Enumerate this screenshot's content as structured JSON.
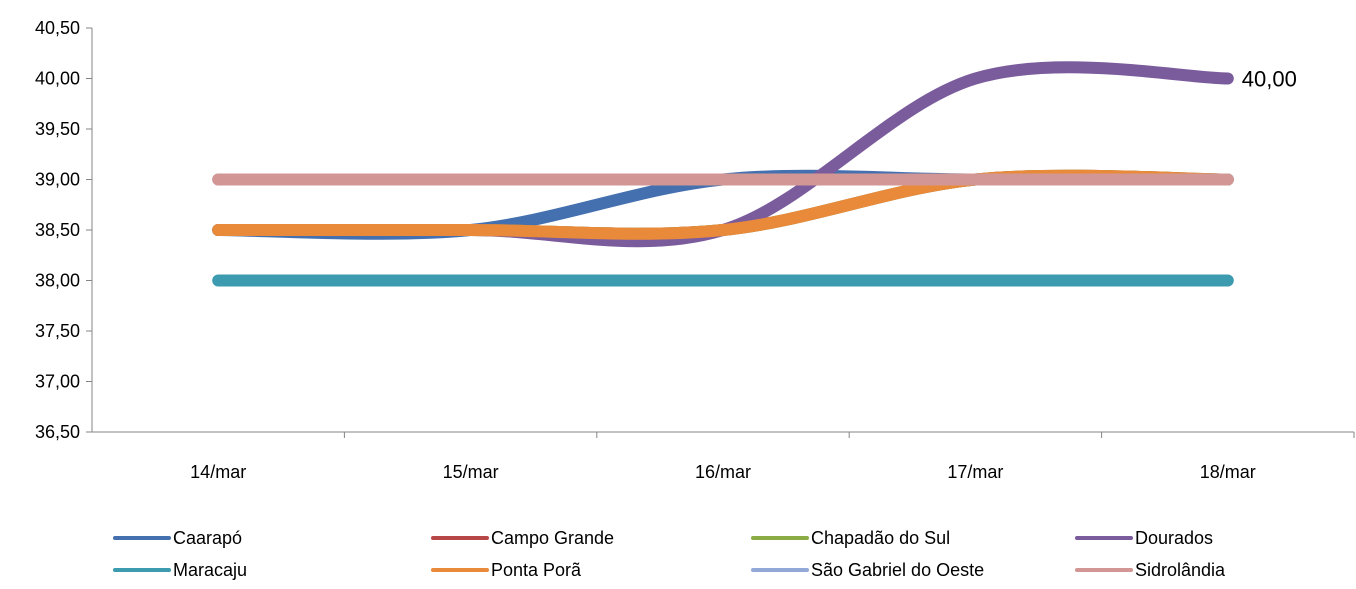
{
  "chart_data": {
    "type": "line",
    "categories": [
      "14/mar",
      "15/mar",
      "16/mar",
      "17/mar",
      "18/mar"
    ],
    "ylim": [
      36.5,
      40.5
    ],
    "yticks": [
      "36,50",
      "37,00",
      "37,50",
      "38,00",
      "38,50",
      "39,00",
      "39,50",
      "40,00",
      "40,50"
    ],
    "grid": false,
    "legend_position": "bottom",
    "smooth": true,
    "series": [
      {
        "name": "Caarapó",
        "color": "#4470b0",
        "values": [
          38.5,
          38.5,
          39.0,
          39.0,
          39.0
        ]
      },
      {
        "name": "Campo Grande",
        "color": "#b64746",
        "values": [
          38.5,
          38.5,
          38.5,
          39.0,
          39.0
        ]
      },
      {
        "name": "Chapadão do Sul",
        "color": "#8bab44",
        "values": [
          38.5,
          38.5,
          38.5,
          39.0,
          39.0
        ]
      },
      {
        "name": "Dourados",
        "color": "#7a5c9c",
        "values": [
          38.5,
          38.5,
          38.5,
          40.0,
          40.0
        ]
      },
      {
        "name": "Maracaju",
        "color": "#3d9bb0",
        "values": [
          38.0,
          38.0,
          38.0,
          38.0,
          38.0
        ]
      },
      {
        "name": "Ponta Porã",
        "color": "#e98a3a",
        "values": [
          38.5,
          38.5,
          38.5,
          39.0,
          39.0
        ]
      },
      {
        "name": "São Gabriel do Oeste",
        "color": "#92a9d7",
        "values": [
          39.0,
          39.0,
          39.0,
          39.0,
          39.0
        ]
      },
      {
        "name": "Sidrolândia",
        "color": "#d29694",
        "values": [
          39.0,
          39.0,
          39.0,
          39.0,
          39.0
        ]
      }
    ],
    "annotations": [
      {
        "series": "Dourados",
        "index": 4,
        "text": "40,00"
      }
    ]
  }
}
